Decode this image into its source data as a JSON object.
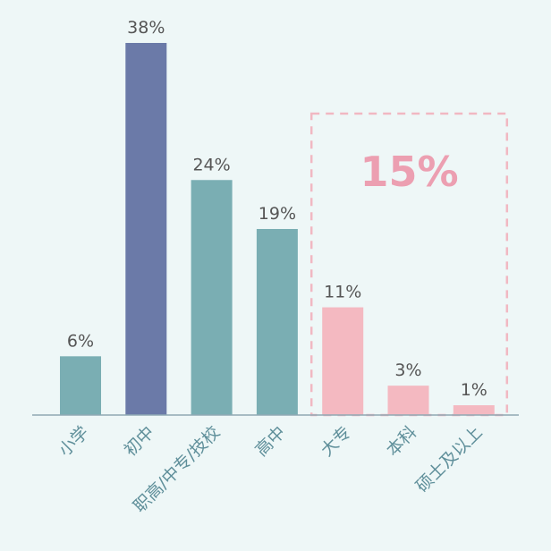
{
  "chart_data": {
    "type": "bar",
    "categories": [
      "小学",
      "初中",
      "职高/中专/技校",
      "高中",
      "大专",
      "本科",
      "硕士及以上"
    ],
    "values": [
      6,
      38,
      24,
      19,
      11,
      3,
      1
    ],
    "value_labels": [
      "6%",
      "38%",
      "24%",
      "19%",
      "11%",
      "3%",
      "1%"
    ],
    "title": "",
    "xlabel": "",
    "ylabel": "",
    "ylim": [
      0,
      38
    ],
    "grid": false,
    "highlight_group": {
      "categories": [
        "大专",
        "本科",
        "硕士及以上"
      ],
      "label": "15%"
    }
  },
  "colors": {
    "background": "#eef7f7",
    "bar_default": "#7aaeb3",
    "bar_peak": "#6b7aa8",
    "bar_highlight": "#f4b9c1",
    "highlight_box": "#f1b8c2",
    "highlight_text": "#ec9fb1",
    "baseline": "#8fa9b4",
    "value_text": "#555555",
    "category_text": "#5f8f9a"
  }
}
